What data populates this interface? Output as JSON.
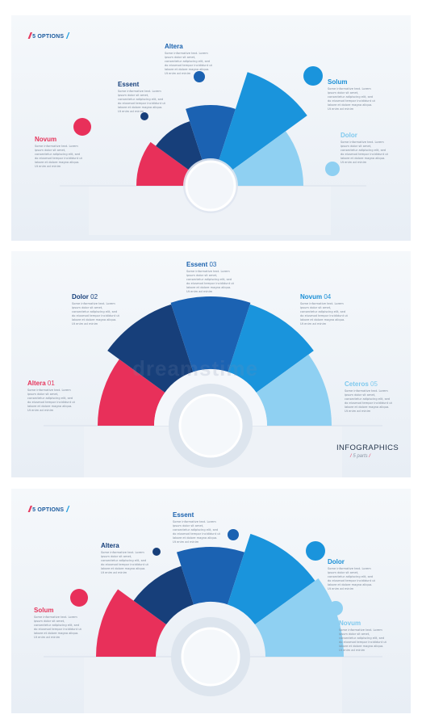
{
  "panel1": {
    "badge": "5 OPTIONS",
    "labels": [
      "Novum",
      "Essent",
      "Altera",
      "Solum",
      "Dolor"
    ],
    "text": "Some informative text. Lorem ipsum dolor sit amet, consectetur adipiscing elit, sed do eiusmod tempor incididunt ut labore et dolore magna aliqua. Ut enim ad minim"
  },
  "panel2": {
    "labels": [
      {
        "name": "Altera",
        "num": "01"
      },
      {
        "name": "Dolor",
        "num": "02"
      },
      {
        "name": "Essent",
        "num": "03"
      },
      {
        "name": "Novum",
        "num": "04"
      },
      {
        "name": "Ceteros",
        "num": "05"
      }
    ],
    "text": "Some informative text. Lorem ipsum dolor sit amet, consectetur adipiscing elit, sed do eiusmod tempor incididunt ut labore et dolore magna aliqua. Ut enim ad minim",
    "watermark": "dreamstime",
    "title": "INFOGRAPHICS",
    "subtitle": "5 parts"
  },
  "panel3": {
    "badge": "5 OPTIONS",
    "labels": [
      "Solum",
      "Altera",
      "Essent",
      "Dolor",
      "Novum"
    ],
    "text": "Some informative text. Lorem ipsum dolor sit amet, consectetur adipiscing elit, sed do eiusmod tempor incididunt ut labore et dolore magna aliqua. Ut enim ad minim"
  },
  "colors": {
    "red": "#e8305a",
    "navy": "#173f7a",
    "mid_blue": "#1b62b2",
    "blue": "#1a94dc",
    "light_blue": "#8fd0f2"
  }
}
